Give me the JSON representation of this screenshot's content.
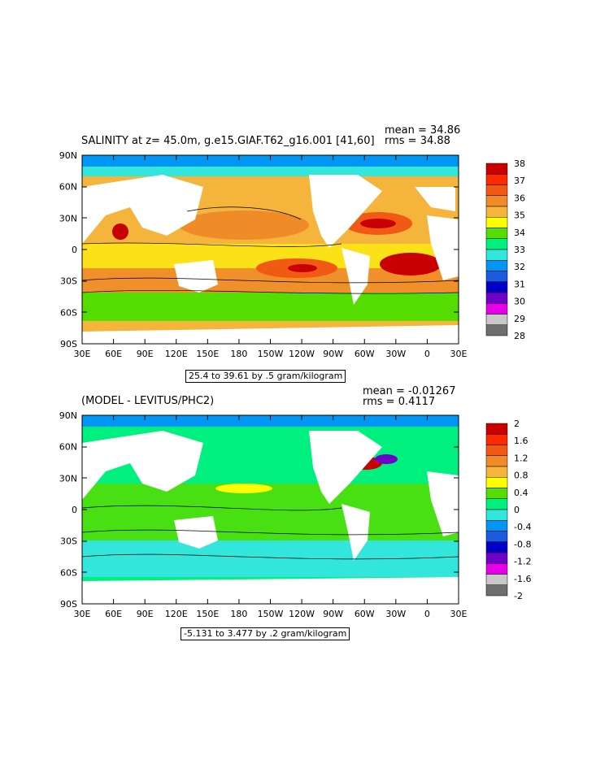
{
  "panels": [
    {
      "title": "SALINITY at z=  45.0m, g.e15.GIAF.T62_g16.001 [41,60]",
      "mean_label": "mean = 34.86",
      "rms_label": "rms = 34.88",
      "range_label": "25.4 to 39.61 by .5 gram/kilogram",
      "yticks": [
        "90N",
        "60N",
        "30N",
        "0",
        "30S",
        "60S",
        "90S"
      ],
      "xticks": [
        "30E",
        "60E",
        "90E",
        "120E",
        "150E",
        "180",
        "150W",
        "120W",
        "90W",
        "60W",
        "30W",
        "0",
        "30E"
      ],
      "colorbar": {
        "labels": [
          "38",
          "37",
          "36",
          "35",
          "34",
          "33",
          "32",
          "31",
          "30",
          "29",
          "28"
        ],
        "colors": [
          "#c80000",
          "#ff2a00",
          "#f05a14",
          "#f08c28",
          "#f5b43c",
          "#ffff00",
          "#55dc00",
          "#00f080",
          "#32e6dc",
          "#0096f5",
          "#1e5adc",
          "#0000c8",
          "#6e00c8",
          "#e600e6",
          "#c8c8c8",
          "#6e6e6e"
        ]
      }
    },
    {
      "title": "(MODEL - LEVITUS/PHC2)",
      "mean_label": "mean = -0.01267",
      "rms_label": "rms = 0.4117",
      "range_label": "-5.131 to 3.477 by .2 gram/kilogram",
      "yticks": [
        "90N",
        "60N",
        "30N",
        "0",
        "30S",
        "60S",
        "90S"
      ],
      "xticks": [
        "30E",
        "60E",
        "90E",
        "120E",
        "150E",
        "180",
        "150W",
        "120W",
        "90W",
        "60W",
        "30W",
        "0",
        "30E"
      ],
      "colorbar": {
        "labels": [
          "2",
          "1.6",
          "1.2",
          "0.8",
          "0.4",
          "0",
          "-0.4",
          "-0.8",
          "-1.2",
          "-1.6",
          "-2"
        ],
        "colors": [
          "#c80000",
          "#ff2a00",
          "#f05a14",
          "#f08c28",
          "#f5b43c",
          "#ffff00",
          "#55dc00",
          "#00f080",
          "#32e6dc",
          "#0096f5",
          "#1e5adc",
          "#0000c8",
          "#6e00c8",
          "#e600e6",
          "#c8c8c8",
          "#6e6e6e"
        ]
      }
    }
  ]
}
